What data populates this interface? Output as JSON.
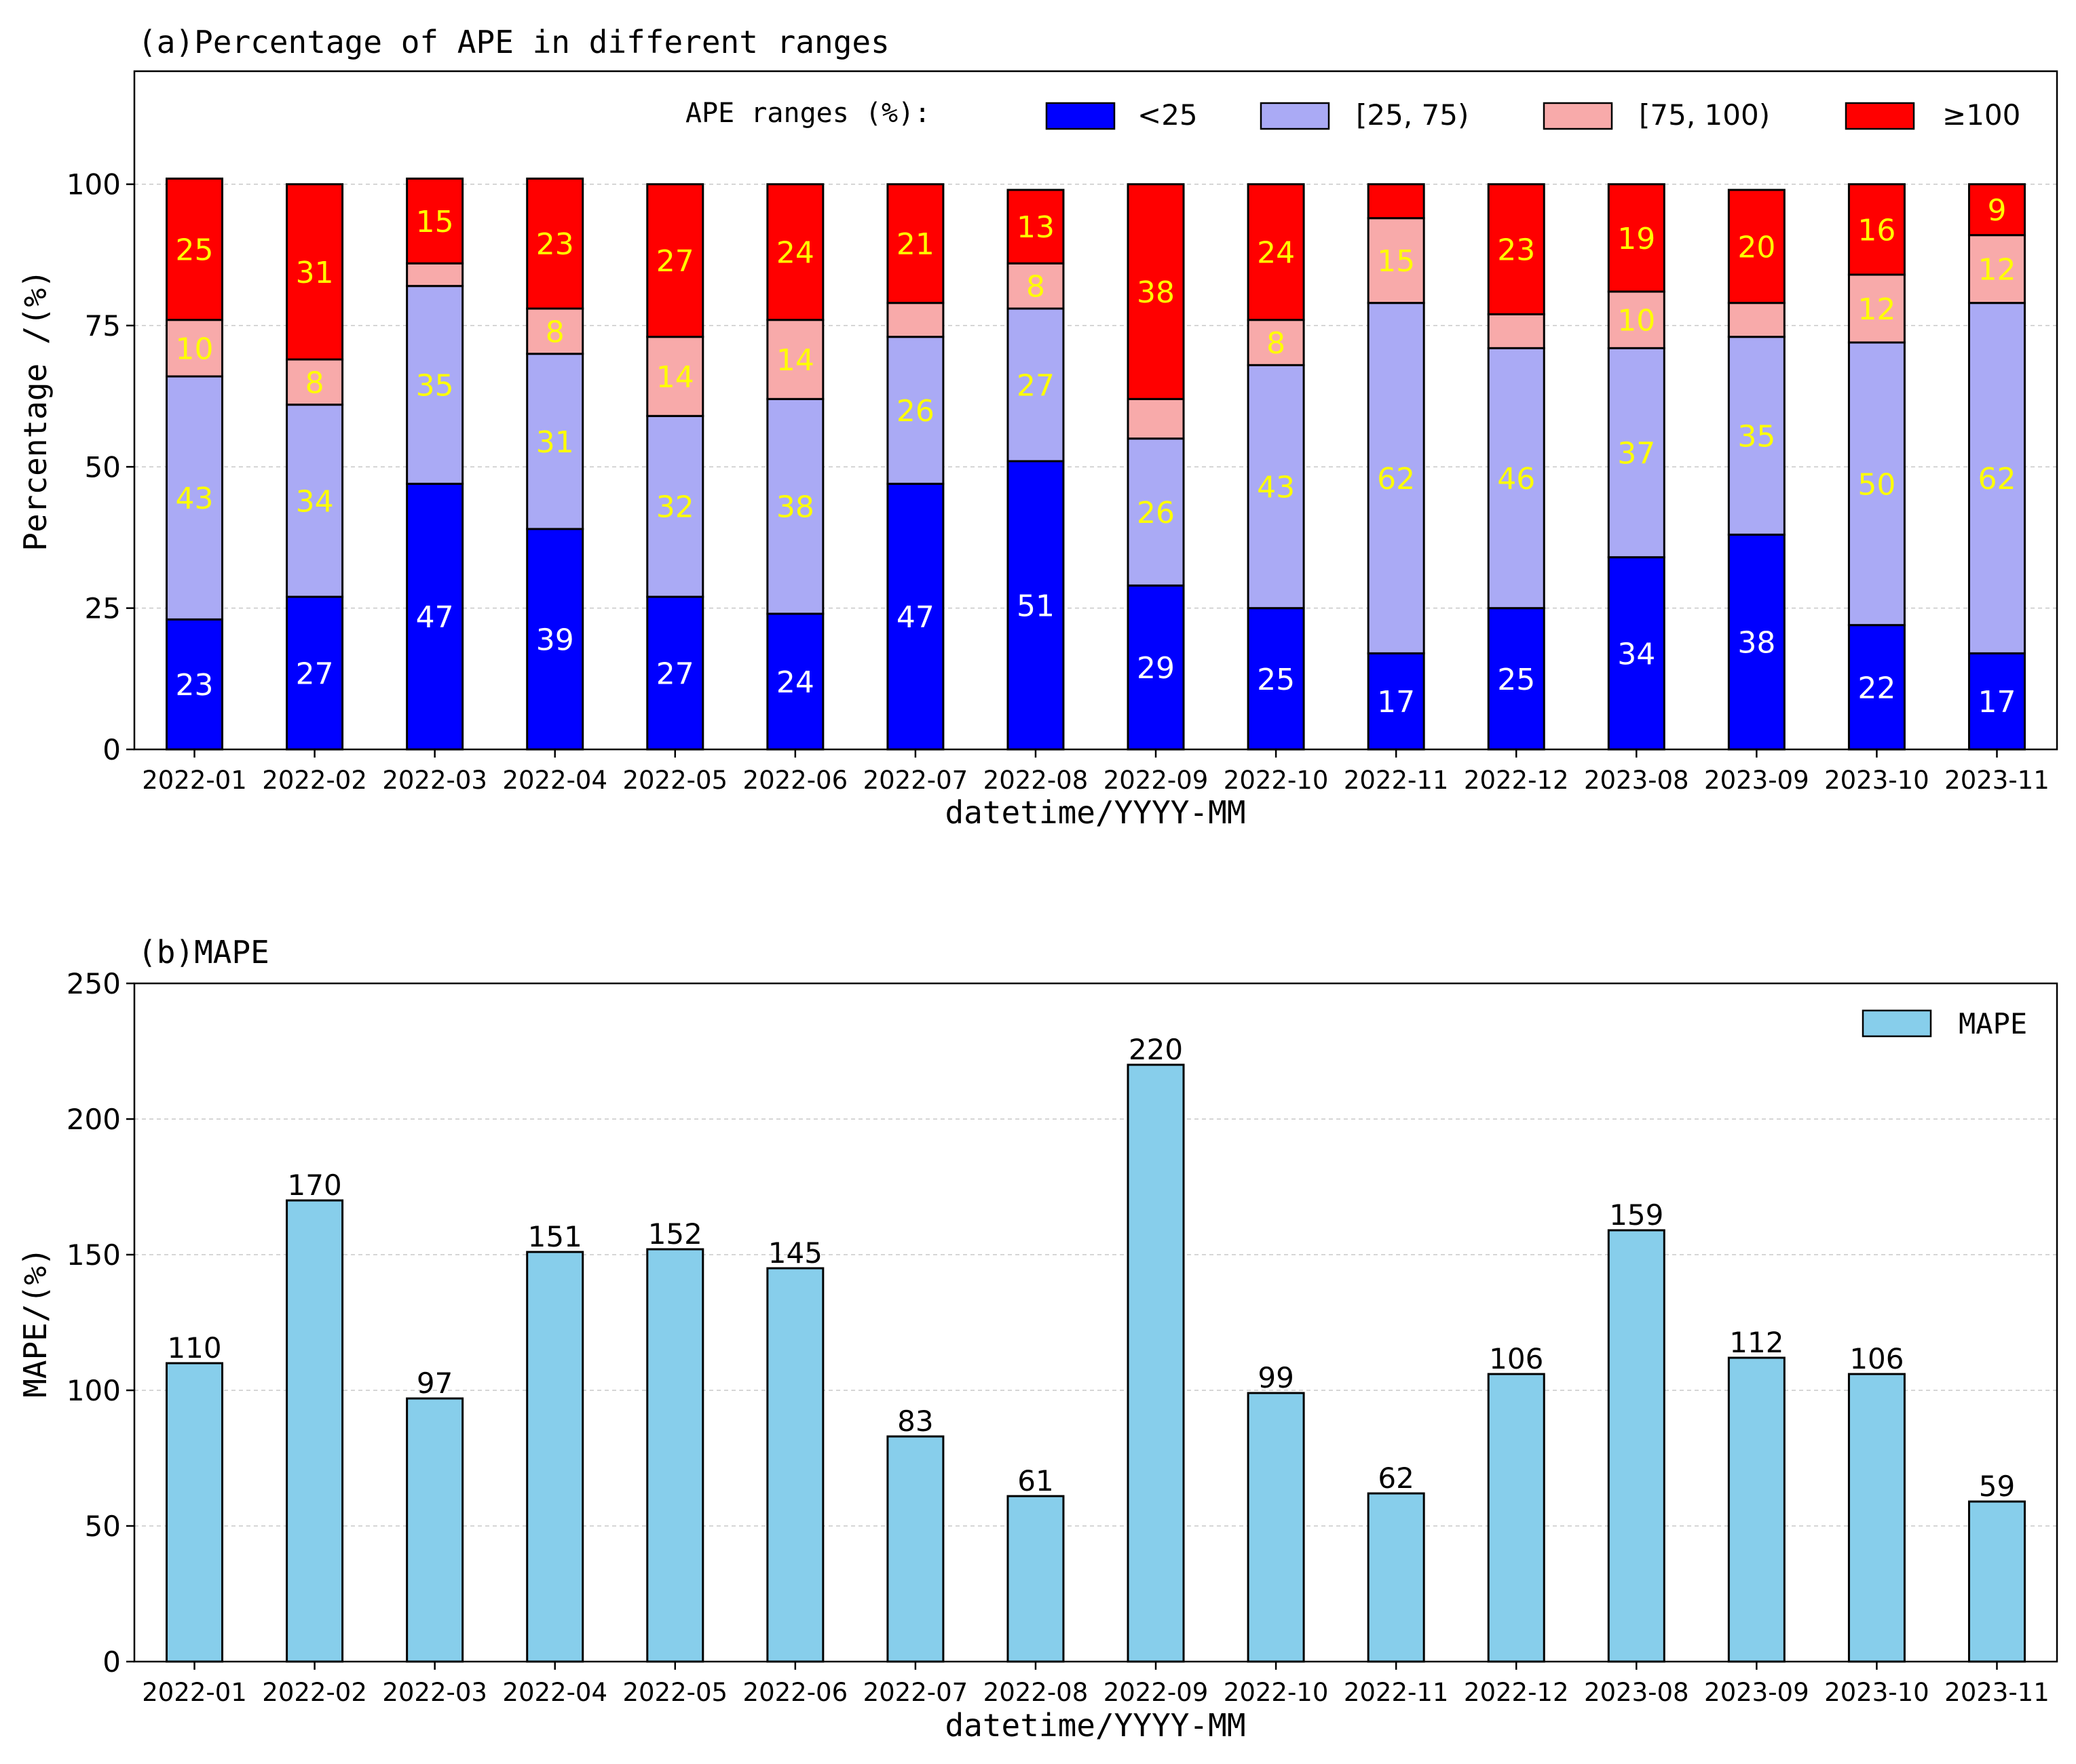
{
  "chart_data": [
    {
      "type": "bar",
      "stacked": true,
      "title": "(a)Percentage of APE in different ranges",
      "xlabel": "datetime/YYYY-MM",
      "ylabel": "Percentage /(%)",
      "ylim": [
        0,
        120
      ],
      "yticks": [
        0,
        25,
        50,
        75,
        100
      ],
      "grid": true,
      "legend_title": "APE ranges (%):",
      "legend_position": "top",
      "categories": [
        "2022-01",
        "2022-02",
        "2022-03",
        "2022-04",
        "2022-05",
        "2022-06",
        "2022-07",
        "2022-08",
        "2022-09",
        "2022-10",
        "2022-11",
        "2022-12",
        "2023-08",
        "2023-09",
        "2023-10",
        "2023-11"
      ],
      "series": [
        {
          "name": "<25",
          "color": "#0000ff",
          "label_color": "#ffffff",
          "values": [
            23,
            27,
            47,
            39,
            27,
            24,
            47,
            51,
            29,
            25,
            17,
            25,
            34,
            38,
            22,
            17
          ],
          "labels": [
            "23",
            "27",
            "47",
            "39",
            "27",
            "24",
            "47",
            "51",
            "29",
            "25",
            "17",
            "25",
            "34",
            "38",
            "22",
            "17"
          ]
        },
        {
          "name": "[25, 75)",
          "color": "#aaaaf5",
          "label_color": "#ffff00",
          "values": [
            43,
            34,
            35,
            31,
            32,
            38,
            26,
            27,
            26,
            43,
            62,
            46,
            37,
            35,
            50,
            62
          ],
          "labels": [
            "43",
            "34",
            "35",
            "31",
            "32",
            "38",
            "26",
            "27",
            "26",
            "43",
            "62",
            "46",
            "37",
            "35",
            "50",
            "62"
          ]
        },
        {
          "name": "[75, 100)",
          "color": "#f8aaaa",
          "label_color": "#ffff00",
          "values": [
            10,
            8,
            4,
            8,
            14,
            14,
            6,
            8,
            7,
            8,
            15,
            6,
            10,
            6,
            12,
            12
          ],
          "labels": [
            "10",
            "8",
            "",
            "8",
            "14",
            "14",
            "",
            "8",
            "",
            "8",
            "15",
            "",
            "10",
            "",
            "12",
            "12"
          ]
        },
        {
          "name": "≥100",
          "color": "#ff0000",
          "label_color": "#ffff00",
          "values": [
            25,
            31,
            15,
            23,
            27,
            24,
            21,
            13,
            38,
            24,
            6,
            23,
            19,
            20,
            16,
            9
          ],
          "labels": [
            "25",
            "31",
            "15",
            "23",
            "27",
            "24",
            "21",
            "13",
            "38",
            "24",
            "",
            "23",
            "19",
            "20",
            "16",
            "9"
          ]
        }
      ]
    },
    {
      "type": "bar",
      "title": "(b)MAPE",
      "xlabel": "datetime/YYYY-MM",
      "ylabel": "MAPE/(%)",
      "ylim": [
        0,
        250
      ],
      "yticks": [
        0,
        50,
        100,
        150,
        200,
        250
      ],
      "grid": true,
      "legend_position": "top-right",
      "categories": [
        "2022-01",
        "2022-02",
        "2022-03",
        "2022-04",
        "2022-05",
        "2022-06",
        "2022-07",
        "2022-08",
        "2022-09",
        "2022-10",
        "2022-11",
        "2022-12",
        "2023-08",
        "2023-09",
        "2023-10",
        "2023-11"
      ],
      "series": [
        {
          "name": "MAPE",
          "color": "#87ceeb",
          "values": [
            110,
            170,
            97,
            151,
            152,
            145,
            83,
            61,
            220,
            99,
            62,
            106,
            159,
            112,
            106,
            59
          ]
        }
      ]
    }
  ]
}
